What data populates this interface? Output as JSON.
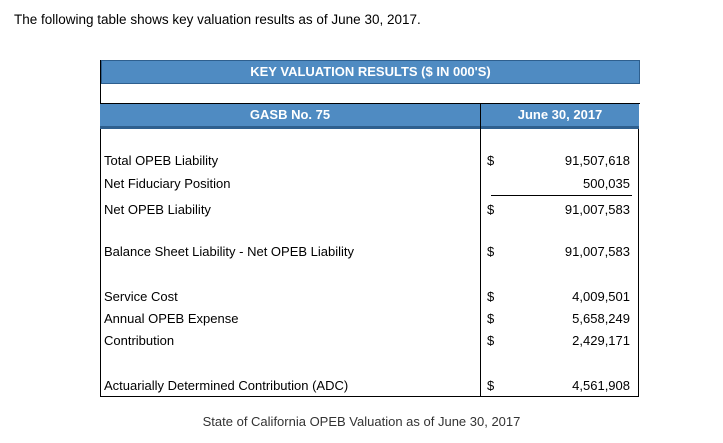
{
  "intro": "The following table shows key valuation results as of June 30, 2017.",
  "table": {
    "title": "KEY VALUATION RESULTS ($ IN 000'S)",
    "header_left": "GASB No. 75",
    "header_right": "June 30, 2017",
    "rows": [
      {
        "label": "Total OPEB Liability",
        "currency": "$",
        "value": "91,507,618"
      },
      {
        "label": "Net Fiduciary Position",
        "currency": "",
        "value": "500,035"
      },
      {
        "label": "Net OPEB Liability",
        "currency": "$",
        "value": "91,007,583"
      },
      {
        "label": "Balance Sheet Liability - Net OPEB Liability",
        "currency": "$",
        "value": "91,007,583"
      },
      {
        "label": "Service Cost",
        "currency": "$",
        "value": "4,009,501"
      },
      {
        "label": "Annual OPEB Expense",
        "currency": "$",
        "value": "5,658,249"
      },
      {
        "label": "Contribution",
        "currency": "$",
        "value": "2,429,171"
      },
      {
        "label": "Actuarially Determined Contribution (ADC)",
        "currency": "$",
        "value": "4,561,908"
      }
    ]
  },
  "caption": "State of California OPEB Valuation as of June 30, 2017",
  "colors": {
    "header_blue": "#4f8bc2",
    "header_border": "#2e5f8e"
  }
}
